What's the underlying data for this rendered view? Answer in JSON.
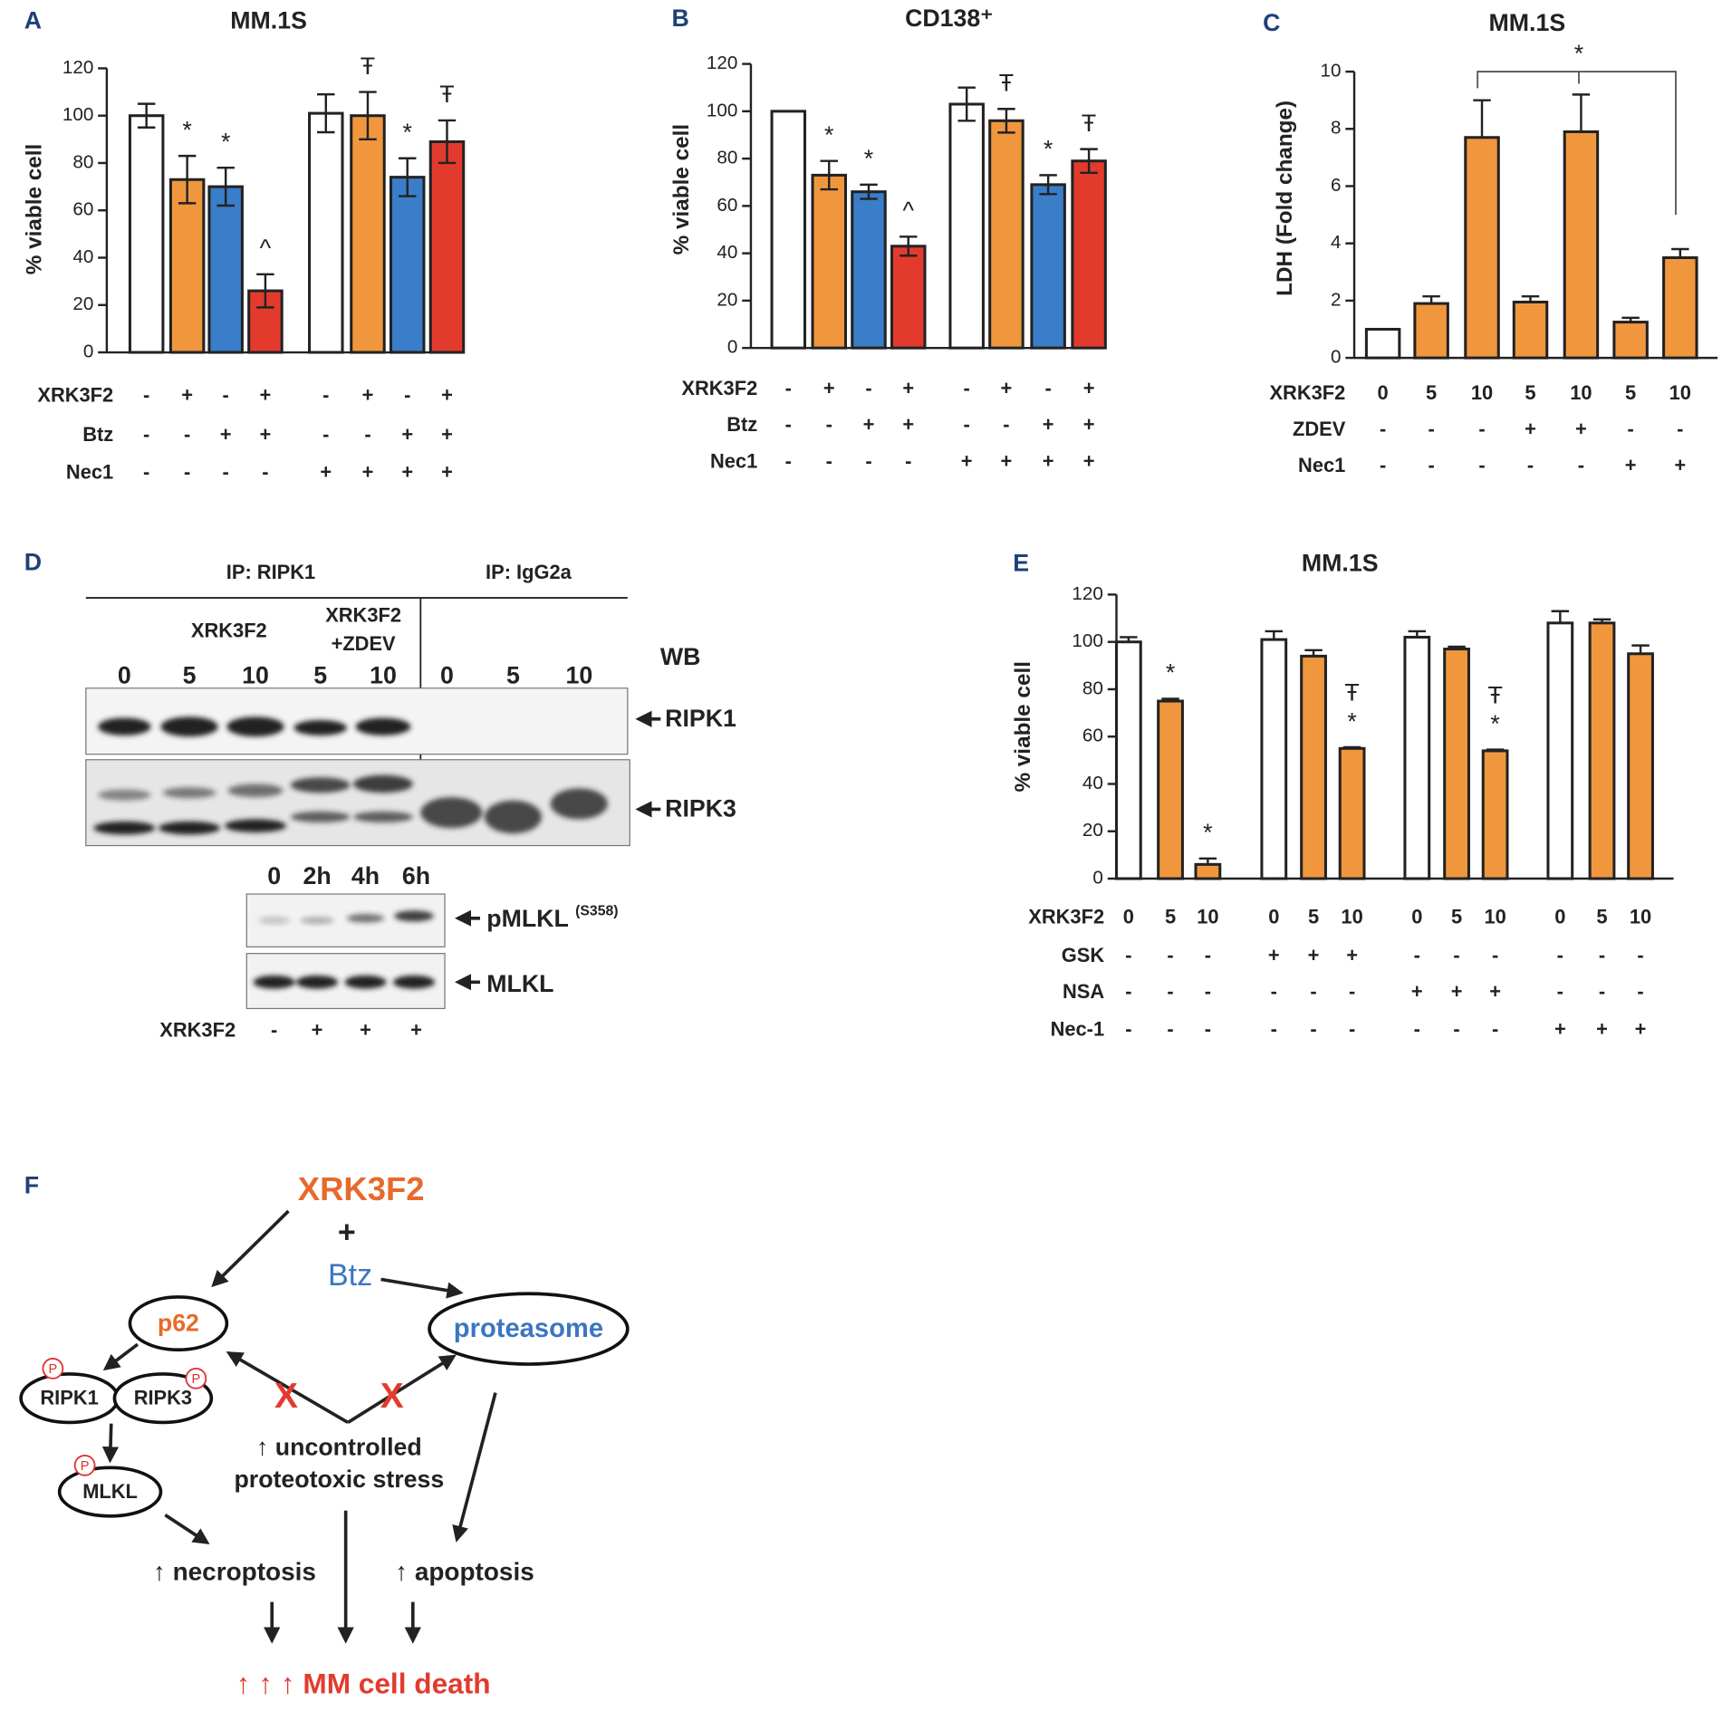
{
  "chart_data": [
    {
      "type": "bar",
      "panel": "A",
      "title": "MM.1S",
      "y_label": "% viable cell",
      "ylim": [
        0,
        120
      ],
      "yticks": [
        0,
        20,
        40,
        60,
        80,
        100,
        120
      ],
      "values": [
        100,
        73,
        70,
        26,
        101,
        100,
        74,
        89
      ],
      "errors": [
        5,
        10,
        8,
        7,
        8,
        10,
        8,
        9
      ],
      "colors": [
        "#ffffff",
        "#f0973e",
        "#3a7dc9",
        "#e23b2e",
        "#ffffff",
        "#f0973e",
        "#3a7dc9",
        "#e23b2e"
      ],
      "annotations": [
        null,
        [
          "*"
        ],
        [
          "*"
        ],
        [
          "^"
        ],
        null,
        [
          "Ŧ"
        ],
        [
          "*"
        ],
        [
          "Ŧ"
        ]
      ],
      "conditions": [
        {
          "name": "XRK3F2",
          "values": [
            "-",
            "+",
            "-",
            "+",
            "-",
            "+",
            "-",
            "+"
          ]
        },
        {
          "name": "Btz",
          "values": [
            "-",
            "-",
            "+",
            "+",
            "-",
            "-",
            "+",
            "+"
          ]
        },
        {
          "name": "Nec1",
          "values": [
            "-",
            "-",
            "-",
            "-",
            "+",
            "+",
            "+",
            "+"
          ]
        }
      ]
    },
    {
      "type": "bar",
      "panel": "B",
      "title": "CD138⁺",
      "y_label": "% viable cell",
      "ylim": [
        0,
        120
      ],
      "yticks": [
        0,
        20,
        40,
        60,
        80,
        100,
        120
      ],
      "values": [
        100,
        73,
        66,
        43,
        103,
        96,
        69,
        79
      ],
      "errors": [
        0,
        6,
        3,
        4,
        7,
        5,
        4,
        5
      ],
      "colors": [
        "#ffffff",
        "#f0973e",
        "#3a7dc9",
        "#e23b2e",
        "#ffffff",
        "#f0973e",
        "#3a7dc9",
        "#e23b2e"
      ],
      "annotations": [
        null,
        [
          "*"
        ],
        [
          "*"
        ],
        [
          "^"
        ],
        null,
        [
          "Ŧ"
        ],
        [
          "*"
        ],
        [
          "Ŧ"
        ]
      ],
      "conditions": [
        {
          "name": "XRK3F2",
          "values": [
            "-",
            "+",
            "-",
            "+",
            "-",
            "+",
            "-",
            "+"
          ]
        },
        {
          "name": "Btz",
          "values": [
            "-",
            "-",
            "+",
            "+",
            "-",
            "-",
            "+",
            "+"
          ]
        },
        {
          "name": "Nec1",
          "values": [
            "-",
            "-",
            "-",
            "-",
            "+",
            "+",
            "+",
            "+"
          ]
        }
      ]
    },
    {
      "type": "bar",
      "panel": "C",
      "title": "MM.1S",
      "y_label": "LDH (Fold change)",
      "ylim": [
        0,
        10
      ],
      "yticks": [
        0,
        2,
        4,
        6,
        8,
        10
      ],
      "values": [
        1,
        1.9,
        7.7,
        1.95,
        7.9,
        1.25,
        3.5
      ],
      "errors": [
        0,
        0.25,
        1.3,
        0.2,
        1.3,
        0.15,
        0.3
      ],
      "colors": [
        "#ffffff",
        "#f0973e",
        "#f0973e",
        "#f0973e",
        "#f0973e",
        "#f0973e",
        "#f0973e"
      ],
      "annotations": [
        null,
        null,
        null,
        null,
        null,
        null,
        null
      ],
      "bracket_label": "*",
      "conditions": [
        {
          "name": "XRK3F2",
          "values": [
            "0",
            "5",
            "10",
            "5",
            "10",
            "5",
            "10"
          ]
        },
        {
          "name": "ZDEV",
          "values": [
            "-",
            "-",
            "-",
            "+",
            "+",
            "-",
            "-"
          ]
        },
        {
          "name": "Nec1",
          "values": [
            "-",
            "-",
            "-",
            "-",
            "-",
            "+",
            "+"
          ]
        }
      ]
    },
    {
      "type": "bar",
      "panel": "E",
      "title": "MM.1S",
      "y_label": "% viable cell",
      "ylim": [
        0,
        120
      ],
      "yticks": [
        0,
        20,
        40,
        60,
        80,
        100,
        120
      ],
      "values": [
        100,
        75,
        6,
        101,
        94,
        55,
        102,
        97,
        54,
        108,
        108,
        95
      ],
      "errors": [
        2,
        1,
        2.5,
        3.5,
        2.5,
        0.5,
        2.5,
        1,
        0.5,
        5,
        1.5,
        3.5
      ],
      "colors": [
        "#ffffff",
        "#f0973e",
        "#f0973e",
        "#ffffff",
        "#f0973e",
        "#f0973e",
        "#ffffff",
        "#f0973e",
        "#f0973e",
        "#ffffff",
        "#f0973e",
        "#f0973e"
      ],
      "annotations": [
        null,
        [
          "*"
        ],
        [
          "*"
        ],
        null,
        null,
        [
          "Ŧ",
          "*"
        ],
        null,
        null,
        [
          "Ŧ",
          "*"
        ],
        null,
        null,
        null
      ],
      "conditions": [
        {
          "name": "XRK3F2",
          "values": [
            "0",
            "5",
            "10",
            "0",
            "5",
            "10",
            "0",
            "5",
            "10",
            "0",
            "5",
            "10"
          ]
        },
        {
          "name": "GSK",
          "values": [
            "-",
            "-",
            "-",
            "+",
            "+",
            "+",
            "-",
            "-",
            "-",
            "-",
            "-",
            "-"
          ]
        },
        {
          "name": "NSA",
          "values": [
            "-",
            "-",
            "-",
            "-",
            "-",
            "-",
            "+",
            "+",
            "+",
            "-",
            "-",
            "-"
          ]
        },
        {
          "name": "Nec-1",
          "values": [
            "-",
            "-",
            "-",
            "-",
            "-",
            "-",
            "-",
            "-",
            "-",
            "+",
            "+",
            "+"
          ]
        }
      ]
    }
  ],
  "blot": {
    "panel": "D",
    "ip_groups": [
      "IP: RIPK1",
      "IP: IgG2a"
    ],
    "treatment1": "XRK3F2",
    "treatment2": [
      "XRK3F2",
      "+ZDEV"
    ],
    "wb": "WB",
    "lanes": [
      "0",
      "5",
      "10",
      "5",
      "10",
      "0",
      "5",
      "10"
    ],
    "bands": [
      "RIPK1",
      "RIPK3"
    ],
    "time_lanes": [
      "0",
      "2h",
      "4h",
      "6h"
    ],
    "pmlkl": "pMLKL",
    "pmlkl_site": "(S358)",
    "mlkl": "MLKL",
    "row_name": "XRK3F2",
    "row_values": [
      "-",
      "+",
      "+",
      "+"
    ]
  },
  "diagram": {
    "panel": "F",
    "drug1": "XRK3F2",
    "plus": "+",
    "drug2": "Btz",
    "p62": "p62",
    "proteasome": "proteasome",
    "ripk1": "RIPK1",
    "ripk3": "RIPK3",
    "mlkl": "MLKL",
    "phospho": [
      "P",
      "P",
      "P"
    ],
    "block": [
      "X",
      "X"
    ],
    "stress": [
      "↑ uncontrolled",
      "proteotoxic stress"
    ],
    "necroptosis": "↑ necroptosis",
    "apoptosis": "↑ apoptosis",
    "outcome": "↑ ↑ ↑ MM cell death"
  }
}
